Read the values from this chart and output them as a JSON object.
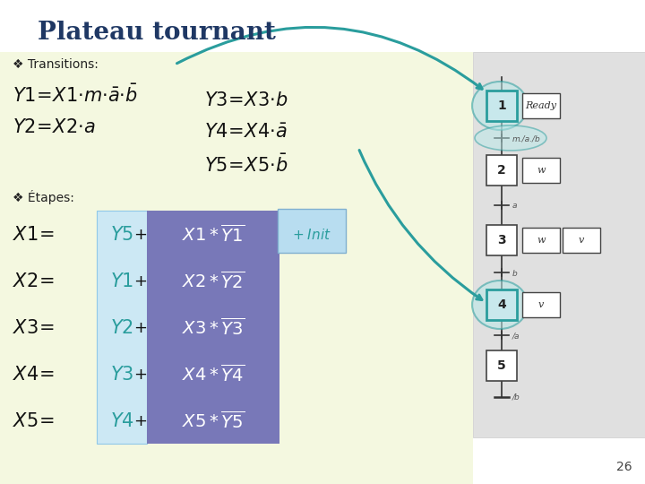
{
  "title": "Plateau tournant",
  "title_color": "#1f3864",
  "bg_color": "#ffffff",
  "slide_number": "26",
  "teal_color": "#2a9d9d",
  "light_blue_bg": "#c8e8f0",
  "yellow_bg": "#f0f4d0",
  "light_blue_col": "#cce8f4",
  "purple_col": "#7070b8",
  "init_box_color": "#b8ddf0",
  "diagram_bg": "#e0e0e0",
  "step_highlight_fc": "#c8e8ec",
  "step_highlight_ec": "#2a9d9d",
  "dy_steps": [
    118,
    190,
    268,
    340,
    408
  ],
  "step_labels": [
    "1",
    "2",
    "3",
    "4",
    "5"
  ],
  "action_labels": [
    [
      "Ready"
    ],
    [
      "w"
    ],
    [
      "w",
      "v"
    ],
    [
      "v"
    ],
    []
  ],
  "transition_labels": [
    "m./a./b",
    "a",
    "b",
    "/a",
    "/b"
  ]
}
